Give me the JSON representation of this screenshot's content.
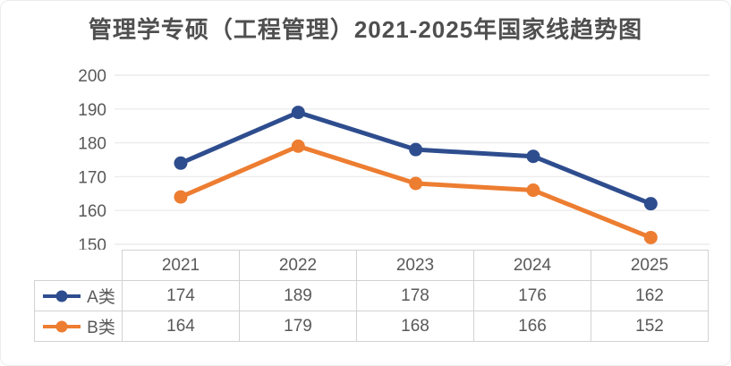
{
  "chart_data": {
    "type": "line",
    "title": "管理学专硕（工程管理）2021-2025年国家线趋势图",
    "categories": [
      "2021",
      "2022",
      "2023",
      "2024",
      "2025"
    ],
    "series": [
      {
        "name": "A类",
        "color": "#2e4d8e",
        "values": [
          174,
          189,
          178,
          176,
          162
        ]
      },
      {
        "name": "B类",
        "color": "#ed7d31",
        "values": [
          164,
          179,
          168,
          166,
          152
        ]
      }
    ],
    "xlabel": "",
    "ylabel": "",
    "ylim": [
      150,
      200
    ],
    "yticks": [
      200,
      190,
      180,
      170,
      160,
      150
    ],
    "grid": true,
    "gridline_color": "#ececec",
    "marker": "circle",
    "legend_position": "table-left-keys",
    "text_color": "#595959"
  }
}
